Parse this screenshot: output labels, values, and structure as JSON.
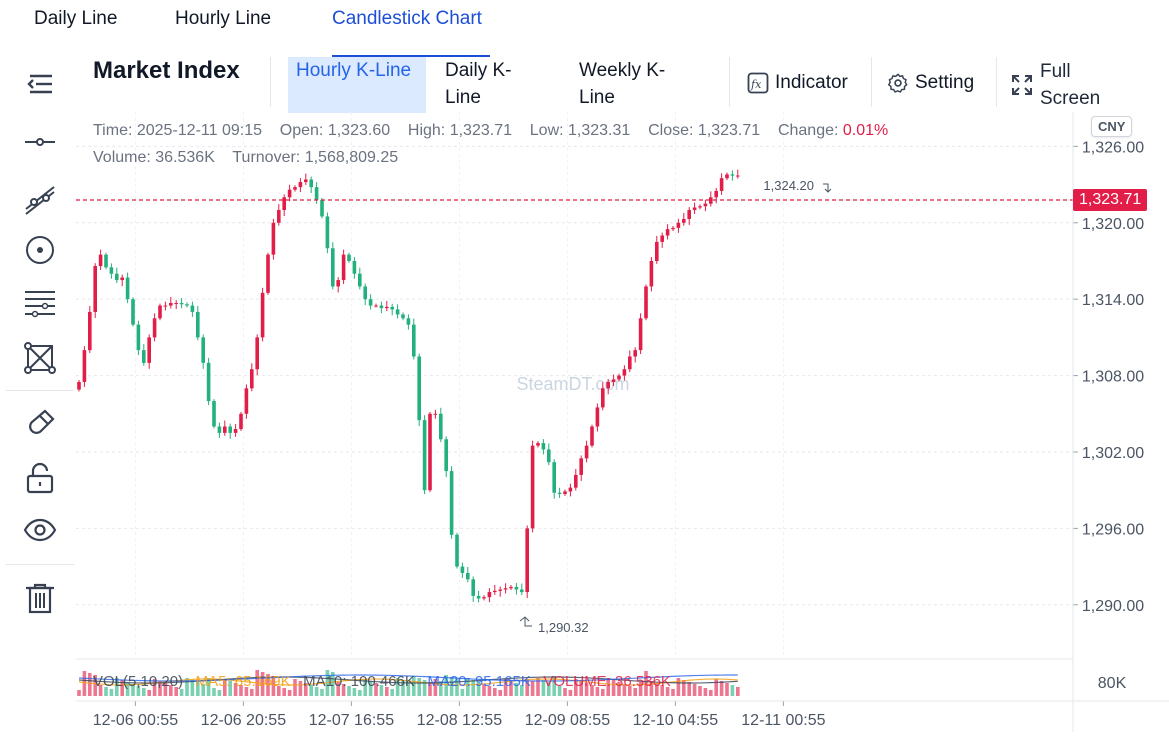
{
  "top_tabs": [
    "Daily Line",
    "Hourly Line",
    "Candlestick Chart"
  ],
  "market_title": "Market Index",
  "kline_tabs": [
    "Hourly K-Line",
    "Daily K-Line",
    "Weekly K-Line"
  ],
  "toolbar": {
    "indicator_label": "Indicator",
    "setting_label": "Setting",
    "fullscreen_label": "Full Screen"
  },
  "left_tools": [
    "horizontal-line",
    "ray-line",
    "circle",
    "fib-lines",
    "shape",
    "magnet",
    "lock",
    "visibility",
    "delete"
  ],
  "info": {
    "time_label": "Time:",
    "time": "2025-12-11 09:15",
    "open_label": "Open:",
    "open": "1,323.60",
    "high_label": "High:",
    "high": "1,323.71",
    "low_label": "Low:",
    "low": "1,323.31",
    "close_label": "Close:",
    "close": "1,323.71",
    "change_label": "Change:",
    "change": "0.01%",
    "volume_label": "Volume:",
    "volume": "36.536K",
    "turnover_label": "Turnover:",
    "turnover": "1,568,809.25"
  },
  "currency": "CNY",
  "current_price": "1,323.71",
  "watermark": "SteamDT.com",
  "high_marker": "1,324.20",
  "low_marker": "1,290.32",
  "volume_legend": {
    "vol": "VOL(5,10,20)",
    "ma5": "MA5: 65.169K",
    "ma10": "MA10: 100.466K",
    "ma20": "MA20: 95.165K",
    "volume": "VOLUME: 36.536K"
  },
  "volume_axis_label": "80K",
  "colors": {
    "up": "#e11d48",
    "down": "#22b07d",
    "accent": "#2563eb"
  },
  "chart_data": {
    "type": "candlestick",
    "y_ticks": [
      "1,326.00",
      "1,320.00",
      "1,314.00",
      "1,308.00",
      "1,302.00",
      "1,296.00",
      "1,290.00"
    ],
    "y_tick_values": [
      1326,
      1320,
      1314,
      1308,
      1302,
      1296,
      1290
    ],
    "ylim": [
      1285.9,
      1328.7
    ],
    "x_ticks": [
      "12-06 00:55",
      "12-06 20:55",
      "12-07 16:55",
      "12-08 12:55",
      "12-09 08:55",
      "12-10 04:55",
      "12-11 00:55"
    ],
    "x_tick_indices": [
      6,
      26,
      46,
      66,
      86,
      106,
      126
    ],
    "close_path": [
      1307.5,
      1310,
      1313,
      1316.6,
      1317.5,
      1316.5,
      1316,
      1315.5,
      1315.7,
      1314,
      1312,
      1310,
      1309,
      1311,
      1312.5,
      1313.5,
      1313.5,
      1313.7,
      1313.7,
      1313.6,
      1313.5,
      1313,
      1311,
      1309,
      1306,
      1304,
      1303.5,
      1304,
      1303.5,
      1303.8,
      1305,
      1307,
      1308.5,
      1311,
      1314.5,
      1317.5,
      1320,
      1321,
      1322,
      1322.6,
      1322.8,
      1323.2,
      1323.4,
      1322.8,
      1321.8,
      1320.5,
      1318,
      1315,
      1315.5,
      1317.5,
      1317,
      1316,
      1315,
      1314,
      1313.5,
      1313.5,
      1313.3,
      1313.4,
      1313.2,
      1312.8,
      1312.5,
      1312,
      1309.5,
      1304.5,
      1299,
      1305,
      1305,
      1303,
      1300.5,
      1295.5,
      1293,
      1292.5,
      1292,
      1290.7,
      1290.5,
      1290.6,
      1291,
      1291.1,
      1291.2,
      1291.3,
      1291.4,
      1291.2,
      1291,
      1296,
      1302.5,
      1302.7,
      1302.2,
      1301.2,
      1298.8,
      1298.7,
      1298.9,
      1299.2,
      1300.2,
      1301.5,
      1302.5,
      1304,
      1305.5,
      1307,
      1307.5,
      1307.7,
      1308,
      1308.5,
      1309.5,
      1310,
      1312.5,
      1315,
      1317,
      1318.5,
      1319,
      1319.5,
      1319.6,
      1320,
      1320.3,
      1321,
      1321.2,
      1321.3,
      1321.5,
      1322,
      1322.5,
      1323.5,
      1323.8,
      1323.7,
      1323.71
    ]
  }
}
